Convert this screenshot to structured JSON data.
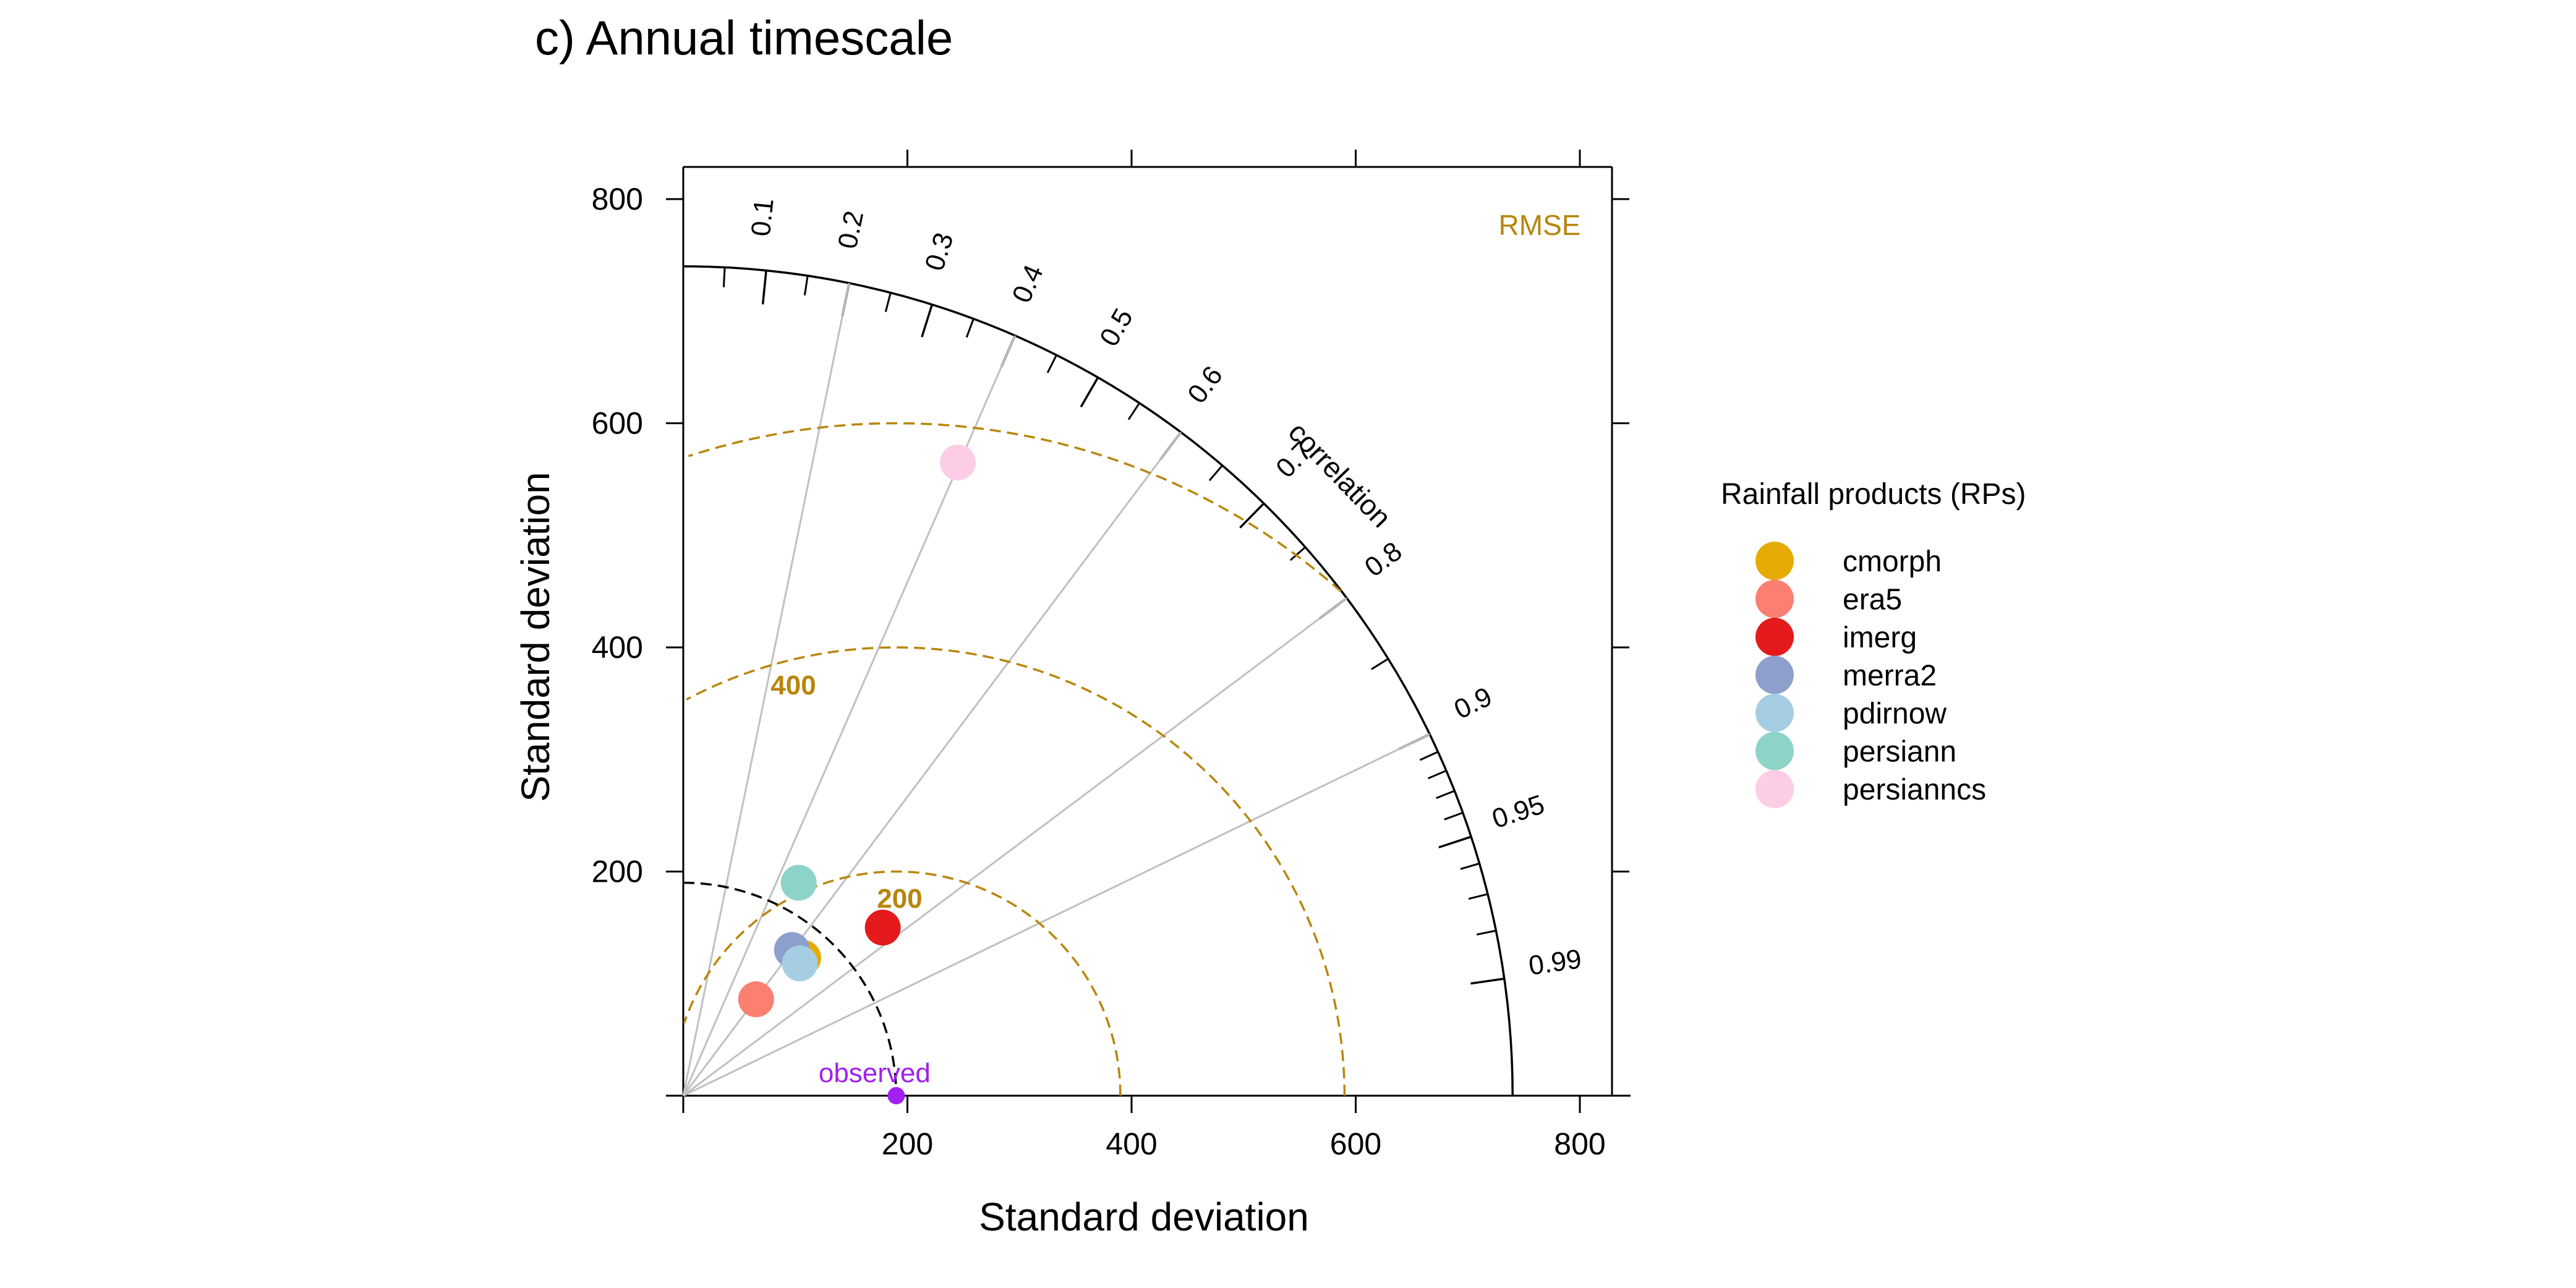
{
  "chart_data": {
    "type": "scatter",
    "subtype": "taylor-diagram",
    "title": "c) Annual timescale",
    "xlabel": "Standard deviation",
    "ylabel": "Standard deviation",
    "xlim": [
      0,
      830
    ],
    "ylim": [
      0,
      830
    ],
    "x_ticks": [
      200,
      400,
      600,
      800
    ],
    "y_ticks": [
      200,
      400,
      600,
      800
    ],
    "sd_max": 740,
    "correlation_label": "correlation",
    "correlation_labels": [
      "0.1",
      "0.2",
      "0.3",
      "0.4",
      "0.5",
      "0.6",
      "0.7",
      "0.8",
      "0.9",
      "0.95",
      "0.99"
    ],
    "correlation_gridlines": [
      0.2,
      0.4,
      0.6,
      0.8,
      0.9
    ],
    "rmse_label": "RMSE",
    "rmse_contours": [
      200,
      400,
      600
    ],
    "rmse_contour_labels": [
      "200",
      "400"
    ],
    "rmse_color": "#B8860B",
    "reference": {
      "name": "observed",
      "sd": 190,
      "color": "#A020F0"
    },
    "legend_title": "Rainfall products (RPs)",
    "legend_position": "right",
    "series": [
      {
        "name": "cmorph",
        "sd": 141,
        "r": 0.76,
        "x": 107,
        "y": 123,
        "color": "#E6AB02"
      },
      {
        "name": "era5",
        "sd": 108,
        "r": 0.6,
        "x": 65,
        "y": 86,
        "color": "#FB8072"
      },
      {
        "name": "imerg",
        "sd": 233,
        "r": 0.77,
        "x": 178,
        "y": 150,
        "color": "#E41A1C"
      },
      {
        "name": "merra2",
        "sd": 159,
        "r": 0.61,
        "x": 97,
        "y": 130,
        "color": "#8DA0CB"
      },
      {
        "name": "pdirnow",
        "sd": 153,
        "r": 0.68,
        "x": 104,
        "y": 118,
        "color": "#A6CEE3"
      },
      {
        "name": "persiann",
        "sd": 215,
        "r": 0.48,
        "x": 103,
        "y": 190,
        "color": "#8DD3C7"
      },
      {
        "name": "persianncs",
        "sd": 617,
        "r": 0.4,
        "x": 245,
        "y": 565,
        "color": "#FCCDE5"
      }
    ]
  }
}
